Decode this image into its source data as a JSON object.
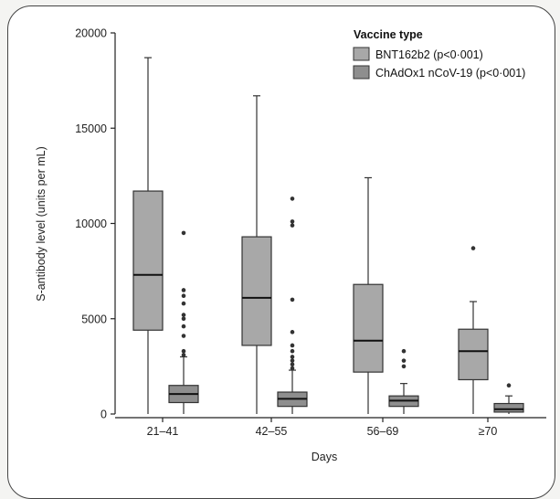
{
  "chart_data": {
    "type": "box",
    "xlabel": "Days",
    "ylabel": "S-antibody level (units per mL)",
    "ylim": [
      0,
      20000
    ],
    "yticks": [
      0,
      5000,
      10000,
      15000,
      20000
    ],
    "ytick_labels": [
      "0",
      "5000",
      "10000",
      "15000",
      "20000"
    ],
    "categories": [
      "21–41",
      "42–55",
      "56–69",
      "≥70"
    ],
    "legend": {
      "title": "Vaccine type",
      "position": "top-right"
    },
    "series": [
      {
        "name": "BNT162b2 (p<0·001)",
        "color": "#a8a8a8",
        "boxes": [
          {
            "min": 0,
            "q1": 4400,
            "median": 7300,
            "q3": 11700,
            "max": 18700,
            "outliers": []
          },
          {
            "min": 0,
            "q1": 3600,
            "median": 6100,
            "q3": 9300,
            "max": 16700,
            "outliers": []
          },
          {
            "min": 0,
            "q1": 2200,
            "median": 3850,
            "q3": 6800,
            "max": 12400,
            "outliers": []
          },
          {
            "min": 0,
            "q1": 1800,
            "median": 3300,
            "q3": 4450,
            "max": 5900,
            "outliers": [
              8700
            ]
          }
        ]
      },
      {
        "name": "ChAdOx1 nCoV-19 (p<0·001)",
        "color": "#8e8e8e",
        "boxes": [
          {
            "min": 0,
            "q1": 600,
            "median": 1050,
            "q3": 1500,
            "max": 3000,
            "outliers": [
              3100,
              3300,
              4100,
              4600,
              5000,
              5200,
              5800,
              6200,
              6500,
              9500
            ]
          },
          {
            "min": 0,
            "q1": 400,
            "median": 800,
            "q3": 1150,
            "max": 2300,
            "outliers": [
              2400,
              2600,
              2800,
              3000,
              3300,
              3600,
              4300,
              6000,
              9900,
              10100,
              11300
            ]
          },
          {
            "min": 0,
            "q1": 400,
            "median": 700,
            "q3": 950,
            "max": 1600,
            "outliers": [
              2500,
              2800,
              3300
            ]
          },
          {
            "min": 0,
            "q1": 100,
            "median": 250,
            "q3": 550,
            "max": 950,
            "outliers": [
              1500
            ]
          }
        ]
      }
    ]
  }
}
